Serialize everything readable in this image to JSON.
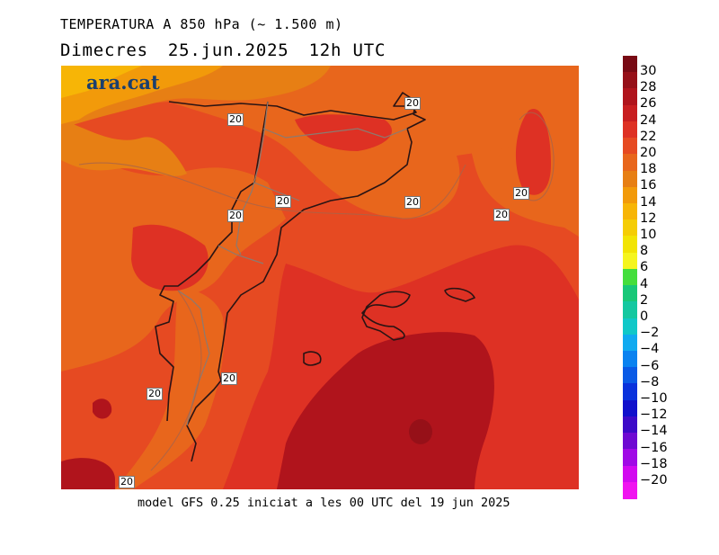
{
  "header": {
    "title": "TEMPERATURA A 850 hPa (~ 1.500 m)",
    "day": "Dimecres",
    "date": "25.jun.2025",
    "time": "12h UTC"
  },
  "brand": "ara.cat",
  "footer": "model GFS 0.25 iniciat a les 00 UTC del 19 jun 2025",
  "contour_labels": [
    "20",
    "20",
    "20",
    "20",
    "20",
    "20",
    "20",
    "20",
    "20",
    "20",
    "20",
    "20"
  ],
  "legend": {
    "labels": [
      "30",
      "28",
      "26",
      "24",
      "22",
      "20",
      "18",
      "16",
      "14",
      "12",
      "10",
      "8",
      "6",
      "4",
      "2",
      "0",
      "−2",
      "−4",
      "−6",
      "−8",
      "−10",
      "−12",
      "−14",
      "−16",
      "−18",
      "−20"
    ],
    "colors": [
      "#780a14",
      "#961018",
      "#b0141c",
      "#c81e20",
      "#de3124",
      "#e64a22",
      "#e8661c",
      "#e77f14",
      "#f29a0a",
      "#f7b506",
      "#f5cd05",
      "#f2e404",
      "#f5f51e",
      "#44de3c",
      "#18c878",
      "#14c8a0",
      "#10c8c8",
      "#10aaf0",
      "#0a82f0",
      "#0a5ae6",
      "#0a32dc",
      "#1010cc",
      "#3c0ac8",
      "#6e0ad2",
      "#a00ae6",
      "#d20af0",
      "#f014f0"
    ],
    "bar_colors_order": "top-to-bottom"
  }
}
